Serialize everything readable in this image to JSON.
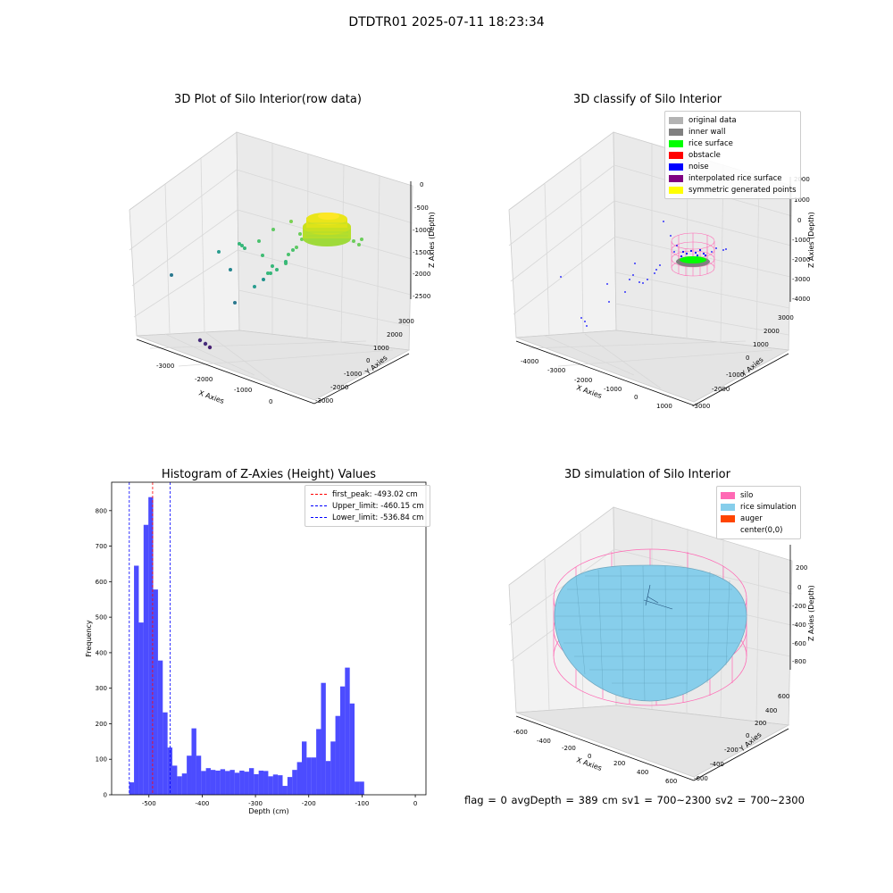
{
  "suptitle": "DTDTR01 2025-07-11 18:23:34",
  "panels": {
    "raw": {
      "title": "3D Plot of Silo Interior(row data)",
      "xlabel": "X Axies",
      "ylabel": "Y Axies",
      "zlabel": "Z Axies (Depth)",
      "xticks": [
        "-3000",
        "-2000",
        "-1000",
        "0"
      ],
      "yticks": [
        "3000",
        "2000",
        "1000",
        "0",
        "-1000",
        "-2000",
        "-3000"
      ],
      "zticks": [
        "0",
        "-500",
        "-1000",
        "-1500",
        "-2000",
        "-2500"
      ]
    },
    "classify": {
      "title": "3D classify of Silo Interior",
      "xlabel": "X Axies",
      "ylabel": "Y Axies",
      "zlabel": "Z Axies (Depth)",
      "xticks": [
        "-4000",
        "-3000",
        "-2000",
        "-1000",
        "0",
        "1000"
      ],
      "yticks": [
        "3000",
        "2000",
        "1000",
        "0",
        "-1000",
        "-2000",
        "-3000"
      ],
      "zticks": [
        "2000",
        "1000",
        "0",
        "-1000",
        "-2000",
        "-3000",
        "-4000"
      ],
      "legend": [
        {
          "label": "original data",
          "color": "#b3b3b3"
        },
        {
          "label": "inner wall",
          "color": "#808080"
        },
        {
          "label": "rice surface",
          "color": "#00ff00"
        },
        {
          "label": "obstacle",
          "color": "#ff0000"
        },
        {
          "label": "noise",
          "color": "#0000ff"
        },
        {
          "label": "interpolated rice surface",
          "color": "#800080"
        },
        {
          "label": "symmetric generated points",
          "color": "#ffff00"
        }
      ]
    },
    "simulation": {
      "title": "3D simulation of Silo Interior",
      "xlabel": "X Axies",
      "ylabel": "Y Axies",
      "zlabel": "Z Axies (Depth)",
      "xticks": [
        "-600",
        "-400",
        "-200",
        "0",
        "200",
        "400",
        "600"
      ],
      "yticks": [
        "600",
        "400",
        "200",
        "0",
        "-200",
        "-400",
        "-600"
      ],
      "zticks": [
        "200",
        "0",
        "-200",
        "-400",
        "-600",
        "-800"
      ],
      "legend": [
        {
          "label": "silo",
          "color": "#ff69b4"
        },
        {
          "label": "rice simulation",
          "color": "#87ceeb"
        },
        {
          "label": "auger",
          "color": "#ff4500"
        },
        {
          "label": "center(0,0)",
          "color": "#ffffff"
        }
      ]
    }
  },
  "footer": "flag = 0     avgDepth = 389 cm  sv1 = 700~2300  sv2 = 700~2300",
  "chart_data": {
    "type": "bar",
    "title": "Histogram of Z-Axies (Height) Values",
    "xlabel": "Depth (cm)",
    "ylabel": "Frequency",
    "xlim": [
      -570,
      20
    ],
    "ylim": [
      0,
      880
    ],
    "xticks": [
      -500,
      -400,
      -300,
      -200,
      -100,
      0
    ],
    "yticks": [
      0,
      100,
      200,
      300,
      400,
      500,
      600,
      700,
      800
    ],
    "bar_color": "#0000ff",
    "bins": [
      {
        "x0": -537,
        "x1": -528,
        "value": 35
      },
      {
        "x0": -528,
        "x1": -519,
        "value": 645
      },
      {
        "x0": -519,
        "x1": -510,
        "value": 485
      },
      {
        "x0": -510,
        "x1": -501,
        "value": 760
      },
      {
        "x0": -501,
        "x1": -492,
        "value": 838
      },
      {
        "x0": -492,
        "x1": -483,
        "value": 578
      },
      {
        "x0": -483,
        "x1": -474,
        "value": 378
      },
      {
        "x0": -474,
        "x1": -465,
        "value": 232
      },
      {
        "x0": -465,
        "x1": -456,
        "value": 133
      },
      {
        "x0": -456,
        "x1": -447,
        "value": 82
      },
      {
        "x0": -447,
        "x1": -438,
        "value": 52
      },
      {
        "x0": -438,
        "x1": -429,
        "value": 60
      },
      {
        "x0": -429,
        "x1": -420,
        "value": 110
      },
      {
        "x0": -420,
        "x1": -411,
        "value": 187
      },
      {
        "x0": -411,
        "x1": -402,
        "value": 110
      },
      {
        "x0": -402,
        "x1": -393,
        "value": 67
      },
      {
        "x0": -393,
        "x1": -384,
        "value": 75
      },
      {
        "x0": -384,
        "x1": -375,
        "value": 70
      },
      {
        "x0": -375,
        "x1": -366,
        "value": 68
      },
      {
        "x0": -366,
        "x1": -357,
        "value": 72
      },
      {
        "x0": -357,
        "x1": -348,
        "value": 67
      },
      {
        "x0": -348,
        "x1": -339,
        "value": 70
      },
      {
        "x0": -339,
        "x1": -330,
        "value": 62
      },
      {
        "x0": -330,
        "x1": -321,
        "value": 68
      },
      {
        "x0": -321,
        "x1": -312,
        "value": 65
      },
      {
        "x0": -312,
        "x1": -303,
        "value": 75
      },
      {
        "x0": -303,
        "x1": -294,
        "value": 58
      },
      {
        "x0": -294,
        "x1": -285,
        "value": 68
      },
      {
        "x0": -285,
        "x1": -276,
        "value": 67
      },
      {
        "x0": -276,
        "x1": -267,
        "value": 52
      },
      {
        "x0": -267,
        "x1": -258,
        "value": 57
      },
      {
        "x0": -258,
        "x1": -249,
        "value": 55
      },
      {
        "x0": -249,
        "x1": -240,
        "value": 25
      },
      {
        "x0": -240,
        "x1": -231,
        "value": 50
      },
      {
        "x0": -231,
        "x1": -222,
        "value": 70
      },
      {
        "x0": -222,
        "x1": -213,
        "value": 92
      },
      {
        "x0": -213,
        "x1": -204,
        "value": 150
      },
      {
        "x0": -204,
        "x1": -195,
        "value": 105
      },
      {
        "x0": -195,
        "x1": -186,
        "value": 105
      },
      {
        "x0": -186,
        "x1": -177,
        "value": 185
      },
      {
        "x0": -177,
        "x1": -168,
        "value": 315
      },
      {
        "x0": -168,
        "x1": -159,
        "value": 95
      },
      {
        "x0": -159,
        "x1": -150,
        "value": 150
      },
      {
        "x0": -150,
        "x1": -141,
        "value": 222
      },
      {
        "x0": -141,
        "x1": -132,
        "value": 305
      },
      {
        "x0": -132,
        "x1": -123,
        "value": 358
      },
      {
        "x0": -123,
        "x1": -114,
        "value": 257
      },
      {
        "x0": -114,
        "x1": -105,
        "value": 37
      },
      {
        "x0": -105,
        "x1": -96,
        "value": 37
      }
    ],
    "vlines": [
      {
        "label": "first_peak: -493.02 cm",
        "x": -493.02,
        "color": "#ff0000"
      },
      {
        "label": "Upper_limit: -460.15 cm",
        "x": -460.15,
        "color": "#0000ff"
      },
      {
        "label": "Lower_limit: -536.84 cm",
        "x": -536.84,
        "color": "#0000ff"
      }
    ]
  }
}
